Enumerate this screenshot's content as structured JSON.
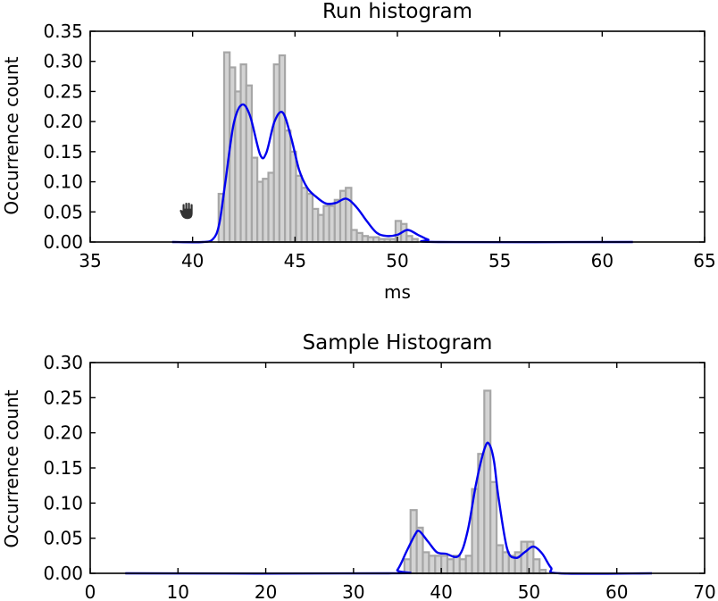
{
  "chart_data": [
    {
      "type": "histogram",
      "title": "Run histogram",
      "xlabel": "ms",
      "ylabel": "Occurrence count",
      "xlim": [
        35,
        65
      ],
      "ylim": [
        0,
        0.35
      ],
      "xticks": [
        35,
        40,
        45,
        50,
        55,
        60,
        65
      ],
      "yticks": [
        "0.00",
        "0.05",
        "0.10",
        "0.15",
        "0.20",
        "0.25",
        "0.30",
        "0.35"
      ],
      "grid": false,
      "hist": {
        "name": "",
        "bin_edges": [
          41.27,
          41.54,
          41.81,
          42.08,
          42.35,
          42.62,
          42.89,
          43.16,
          43.43,
          43.7,
          43.97,
          44.24,
          44.51,
          44.78,
          45.05,
          45.32,
          45.59,
          45.86,
          46.13,
          46.4,
          46.67,
          46.94,
          47.21,
          47.48,
          47.75,
          48.02,
          48.29,
          48.56,
          48.83,
          49.1,
          49.37,
          49.64,
          49.91,
          50.18,
          50.45,
          50.72,
          50.99,
          51.26
        ],
        "values": [
          0.08,
          0.315,
          0.29,
          0.25,
          0.295,
          0.26,
          0.14,
          0.1,
          0.105,
          0.115,
          0.295,
          0.31,
          0.185,
          0.15,
          0.11,
          0.09,
          0.08,
          0.055,
          0.045,
          0.06,
          0.06,
          0.07,
          0.085,
          0.09,
          0.02,
          0.015,
          0.01,
          0.008,
          0.008,
          0.005,
          0.005,
          0.005,
          0.035,
          0.03,
          0.01,
          0.005,
          0.0
        ]
      },
      "kde": {
        "x": [
          39.0,
          40.5,
          41.0,
          41.3,
          41.6,
          42.0,
          42.4,
          42.8,
          43.3,
          43.6,
          44.0,
          44.4,
          44.8,
          45.2,
          45.6,
          46.0,
          46.5,
          47.0,
          47.5,
          48.0,
          48.5,
          49.0,
          49.5,
          50.0,
          50.5,
          51.0,
          51.5,
          52.0,
          61.5
        ],
        "y": [
          0.0,
          0.0,
          0.005,
          0.03,
          0.1,
          0.195,
          0.228,
          0.21,
          0.145,
          0.148,
          0.2,
          0.215,
          0.175,
          0.12,
          0.09,
          0.076,
          0.064,
          0.065,
          0.072,
          0.058,
          0.035,
          0.015,
          0.01,
          0.012,
          0.02,
          0.012,
          0.004,
          0.0,
          0.0
        ]
      },
      "annotation_icon": "hand-cursor-icon",
      "annotation_position": [
        39.8,
        0.051
      ]
    },
    {
      "type": "histogram",
      "title": "Sample Histogram",
      "xlabel": "",
      "ylabel": "Occurrence count",
      "xlim": [
        0,
        70
      ],
      "ylim": [
        0,
        0.3
      ],
      "xticks": [
        0,
        10,
        20,
        30,
        40,
        50,
        60,
        70
      ],
      "yticks": [
        "0.00",
        "0.05",
        "0.10",
        "0.15",
        "0.20",
        "0.25",
        "0.30"
      ],
      "grid": false,
      "hist": {
        "name": "",
        "bin_edges": [
          35.8,
          36.5,
          37.2,
          37.9,
          38.6,
          39.3,
          40.0,
          40.7,
          41.4,
          42.1,
          42.8,
          43.5,
          44.2,
          44.9,
          45.6,
          46.3,
          47.0,
          47.7,
          48.4,
          49.1,
          49.8,
          50.5,
          51.2,
          51.9
        ],
        "values": [
          0.02,
          0.09,
          0.065,
          0.03,
          0.025,
          0.025,
          0.025,
          0.02,
          0.025,
          0.02,
          0.025,
          0.12,
          0.17,
          0.26,
          0.13,
          0.04,
          0.03,
          0.025,
          0.03,
          0.045,
          0.045,
          0.02,
          0.005
        ]
      },
      "kde": {
        "x": [
          4.0,
          34.0,
          35.0,
          36.0,
          37.0,
          37.5,
          38.5,
          39.5,
          40.5,
          42.0,
          43.0,
          44.0,
          45.0,
          45.5,
          46.0,
          46.5,
          47.5,
          48.5,
          49.5,
          50.5,
          51.5,
          52.5,
          53.5,
          64.0
        ],
        "y": [
          0.0,
          0.0,
          0.005,
          0.03,
          0.055,
          0.06,
          0.045,
          0.03,
          0.028,
          0.025,
          0.06,
          0.13,
          0.18,
          0.183,
          0.16,
          0.11,
          0.035,
          0.022,
          0.03,
          0.038,
          0.028,
          0.008,
          0.0,
          0.0
        ]
      }
    }
  ]
}
